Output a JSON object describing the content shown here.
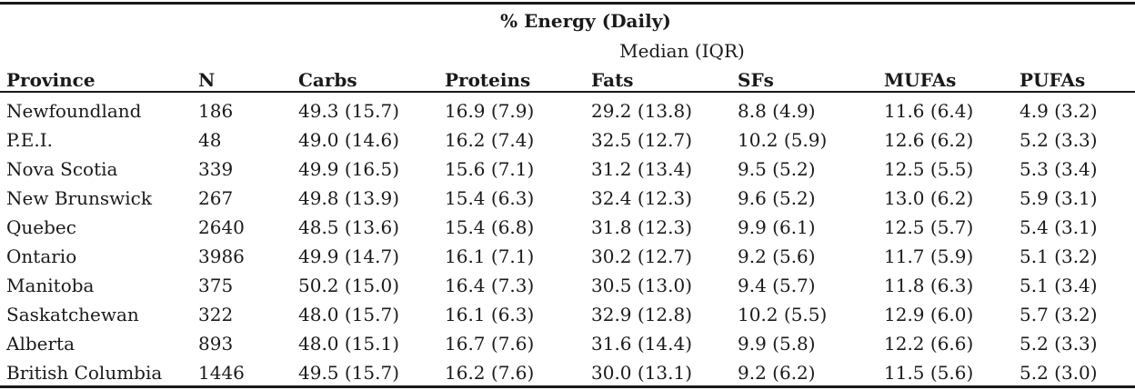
{
  "table": {
    "title": "% Energy (Daily)",
    "subtitle": "Median (IQR)",
    "headers": [
      "Province",
      "N",
      "Carbs",
      "Proteins",
      "Fats",
      "SFs",
      "MUFAs",
      "PUFAs"
    ],
    "rows": [
      [
        "Newfoundland",
        "186",
        "49.3 (15.7)",
        "16.9 (7.9)",
        "29.2 (13.8)",
        "8.8 (4.9)",
        "11.6 (6.4)",
        "4.9 (3.2)"
      ],
      [
        "P.E.I.",
        "48",
        "49.0 (14.6)",
        "16.2 (7.4)",
        "32.5 (12.7)",
        "10.2 (5.9)",
        "12.6 (6.2)",
        "5.2 (3.3)"
      ],
      [
        "Nova Scotia",
        "339",
        "49.9 (16.5)",
        "15.6 (7.1)",
        "31.2 (13.4)",
        "9.5 (5.2)",
        "12.5 (5.5)",
        "5.3 (3.4)"
      ],
      [
        "New Brunswick",
        "267",
        "49.8 (13.9)",
        "15.4 (6.3)",
        "32.4 (12.3)",
        "9.6 (5.2)",
        "13.0 (6.2)",
        "5.9 (3.1)"
      ],
      [
        "Quebec",
        "2640",
        "48.5 (13.6)",
        "15.4 (6.8)",
        "31.8 (12.3)",
        "9.9 (6.1)",
        "12.5 (5.7)",
        "5.4 (3.1)"
      ],
      [
        "Ontario",
        "3986",
        "49.9 (14.7)",
        "16.1 (7.1)",
        "30.2 (12.7)",
        "9.2 (5.6)",
        "11.7 (5.9)",
        "5.1 (3.2)"
      ],
      [
        "Manitoba",
        "375",
        "50.2 (15.0)",
        "16.4 (7.3)",
        "30.5 (13.0)",
        "9.4 (5.7)",
        "11.8 (6.3)",
        "5.1 (3.4)"
      ],
      [
        "Saskatchewan",
        "322",
        "48.0 (15.7)",
        "16.1 (6.3)",
        "32.9 (12.8)",
        "10.2 (5.5)",
        "12.9 (6.0)",
        "5.7 (3.2)"
      ],
      [
        "Alberta",
        "893",
        "48.0 (15.1)",
        "16.7 (7.6)",
        "31.6 (14.4)",
        "9.9 (5.8)",
        "12.2 (6.6)",
        "5.2 (3.3)"
      ],
      [
        "British Columbia",
        "1446",
        "49.5 (15.7)",
        "16.2 (7.6)",
        "30.0 (13.1)",
        "9.2 (6.2)",
        "11.5 (5.6)",
        "5.2 (3.0)"
      ]
    ]
  }
}
